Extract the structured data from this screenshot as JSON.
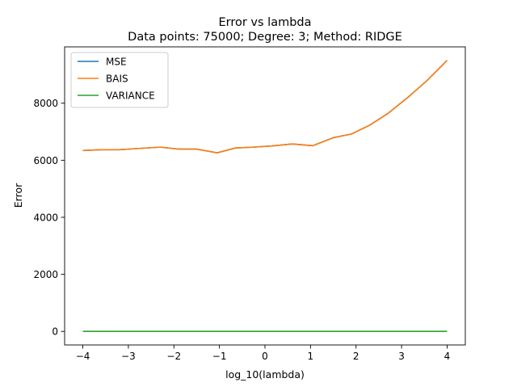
{
  "chart_data": {
    "type": "line",
    "title_lines": [
      "Error vs lambda",
      "Data points: 75000; Degree: 3; Method: RIDGE"
    ],
    "xlabel": "log_10(lambda)",
    "ylabel": "Error",
    "xlim": [
      -4.4,
      4.4
    ],
    "ylim": [
      -475,
      9975
    ],
    "xticks": [
      -4,
      -3,
      -2,
      -1,
      0,
      1,
      2,
      3,
      4
    ],
    "xtick_labels": [
      "−4",
      "−3",
      "−2",
      "−1",
      "0",
      "1",
      "2",
      "3",
      "4"
    ],
    "yticks": [
      0,
      2000,
      4000,
      6000,
      8000
    ],
    "ytick_labels": [
      "0",
      "2000",
      "4000",
      "6000",
      "8000"
    ],
    "grid": false,
    "legend_position": "top-left",
    "x": [
      -4.0,
      -3.6,
      -3.2,
      -2.8,
      -2.3,
      -1.9,
      -1.5,
      -1.05,
      -0.65,
      -0.25,
      0.15,
      0.6,
      1.05,
      1.5,
      1.9,
      2.3,
      2.7,
      3.15,
      3.55,
      4.0
    ],
    "series": [
      {
        "name": "MSE",
        "color": "#1f77b4",
        "values": [
          6340,
          6370,
          6370,
          6410,
          6460,
          6390,
          6390,
          6260,
          6430,
          6460,
          6500,
          6570,
          6510,
          6790,
          6920,
          7230,
          7640,
          8220,
          8780,
          9500
        ]
      },
      {
        "name": "BAIS",
        "color": "#ff7f0e",
        "values": [
          6340,
          6370,
          6370,
          6410,
          6460,
          6390,
          6390,
          6260,
          6430,
          6460,
          6500,
          6570,
          6510,
          6790,
          6920,
          7230,
          7640,
          8220,
          8780,
          9500
        ]
      },
      {
        "name": "VARIANCE",
        "color": "#2ca02c",
        "values": [
          2,
          2,
          2,
          2,
          2,
          2,
          2,
          2,
          2,
          2,
          2,
          2,
          2,
          2,
          2,
          2,
          2,
          2,
          2,
          2
        ]
      }
    ]
  }
}
